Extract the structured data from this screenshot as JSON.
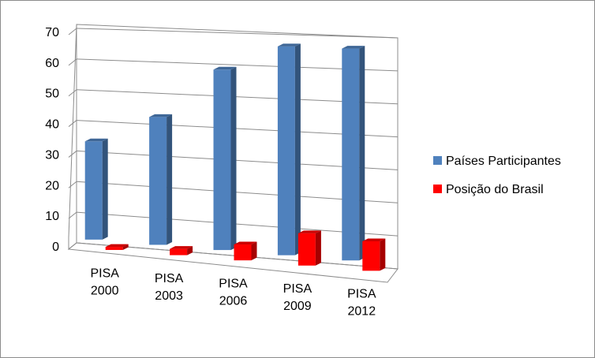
{
  "chart_data": {
    "type": "bar",
    "style": "3d-clustered-column",
    "categories": [
      {
        "line1": "PISA",
        "line2": "2000"
      },
      {
        "line1": "PISA",
        "line2": "2003"
      },
      {
        "line1": "PISA",
        "line2": "2006"
      },
      {
        "line1": "PISA",
        "line2": "2009"
      },
      {
        "line1": "PISA",
        "line2": "2012"
      }
    ],
    "series": [
      {
        "name": "Países Participantes",
        "values": [
          32,
          41,
          57,
          65,
          65
        ],
        "color": "#4f81bd"
      },
      {
        "name": "Posição do Brasil",
        "values": [
          1,
          2,
          5,
          10,
          9
        ],
        "color": "#ff0000"
      }
    ],
    "yticks": [
      "0",
      "10",
      "20",
      "30",
      "40",
      "50",
      "60",
      "70"
    ],
    "ylim": [
      0,
      70
    ],
    "grid": true,
    "legend_position": "right"
  }
}
